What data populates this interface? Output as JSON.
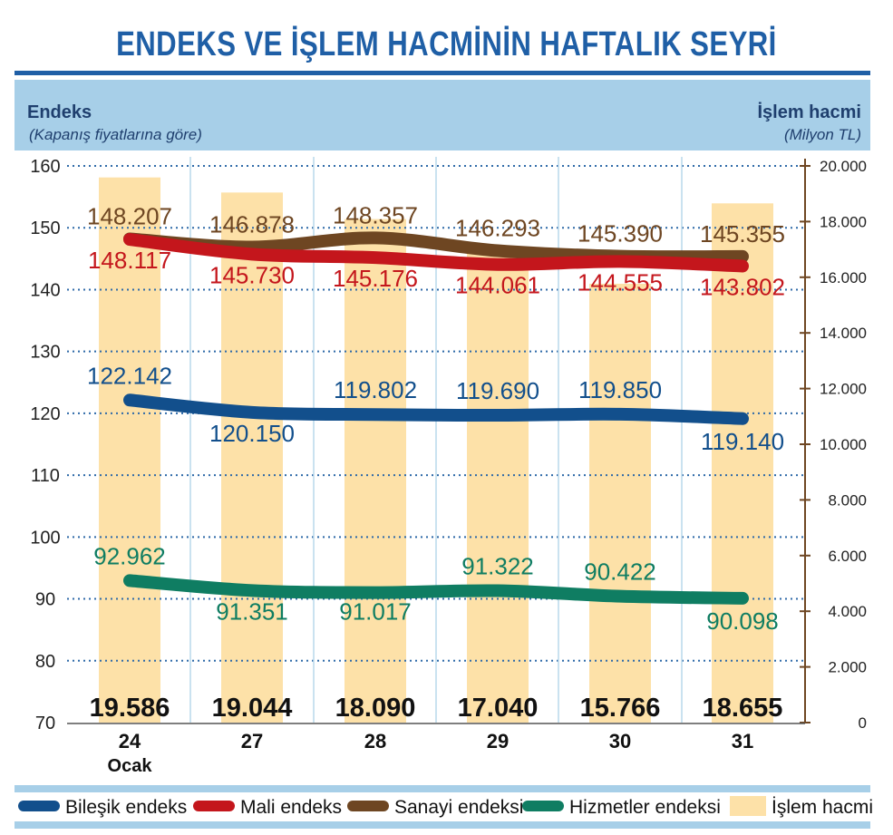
{
  "title": "ENDEKS VE İŞLEM HACMİNİN HAFTALIK SEYRİ",
  "chart_data": {
    "type": "line",
    "left_axis_title": "Endeks",
    "left_axis_subtitle": "(Kapanış fiyatlarına göre)",
    "right_axis_title": "İşlem hacmi",
    "right_axis_subtitle": "(Milyon TL)",
    "categories": [
      "24",
      "27",
      "28",
      "29",
      "30",
      "31"
    ],
    "category_sublabels": [
      "Ocak",
      "",
      "",
      "",
      "",
      ""
    ],
    "y_left_range": [
      70,
      160
    ],
    "y_left_ticks": [
      "70",
      "80",
      "90",
      "100",
      "110",
      "120",
      "130",
      "140",
      "150",
      "160"
    ],
    "y_right_range": [
      0,
      20000
    ],
    "y_right_ticks": [
      "0",
      "2.000",
      "4.000",
      "6.000",
      "8.000",
      "10.000",
      "12.000",
      "14.000",
      "16.000",
      "18.000",
      "20.000"
    ],
    "bars": {
      "name": "İşlem hacmi",
      "color": "#fde1a8",
      "values": [
        19586,
        19044,
        18090,
        17040,
        15766,
        18655
      ],
      "labels": [
        "19.586",
        "19.044",
        "18.090",
        "17.040",
        "15.766",
        "18.655"
      ]
    },
    "series": [
      {
        "name": "Sanayi endeksi",
        "color": "#6e4622",
        "values": [
          148.207,
          146.878,
          148.357,
          146.293,
          145.39,
          145.355
        ],
        "labels": [
          "148.207",
          "146.878",
          "148.357",
          "146.293",
          "145.390",
          "145.355"
        ]
      },
      {
        "name": "Mali endeks",
        "color": "#c4161c",
        "values": [
          148.117,
          145.73,
          145.176,
          144.061,
          144.555,
          143.802
        ],
        "labels": [
          "148.117",
          "145.730",
          "145.176",
          "144.061",
          "144.555",
          "143.802"
        ]
      },
      {
        "name": "Bileşik endeks",
        "color": "#124f8c",
        "values": [
          122.142,
          120.15,
          119.802,
          119.69,
          119.85,
          119.14
        ],
        "labels": [
          "122.142",
          "120.150",
          "119.802",
          "119.690",
          "119.850",
          "119.140"
        ]
      },
      {
        "name": "Hizmetler endeksi",
        "color": "#0f7d62",
        "values": [
          92.962,
          91.351,
          91.017,
          91.322,
          90.422,
          90.098
        ],
        "labels": [
          "92.962",
          "91.351",
          "91.017",
          "91.322",
          "90.422",
          "90.098"
        ]
      }
    ],
    "legend_order": [
      "Bileşik endeks",
      "Mali endeks",
      "Sanayi endeksi",
      "Hizmetler endeksi",
      "İşlem hacmi"
    ],
    "legend_placement": "bottom",
    "grid": true
  }
}
